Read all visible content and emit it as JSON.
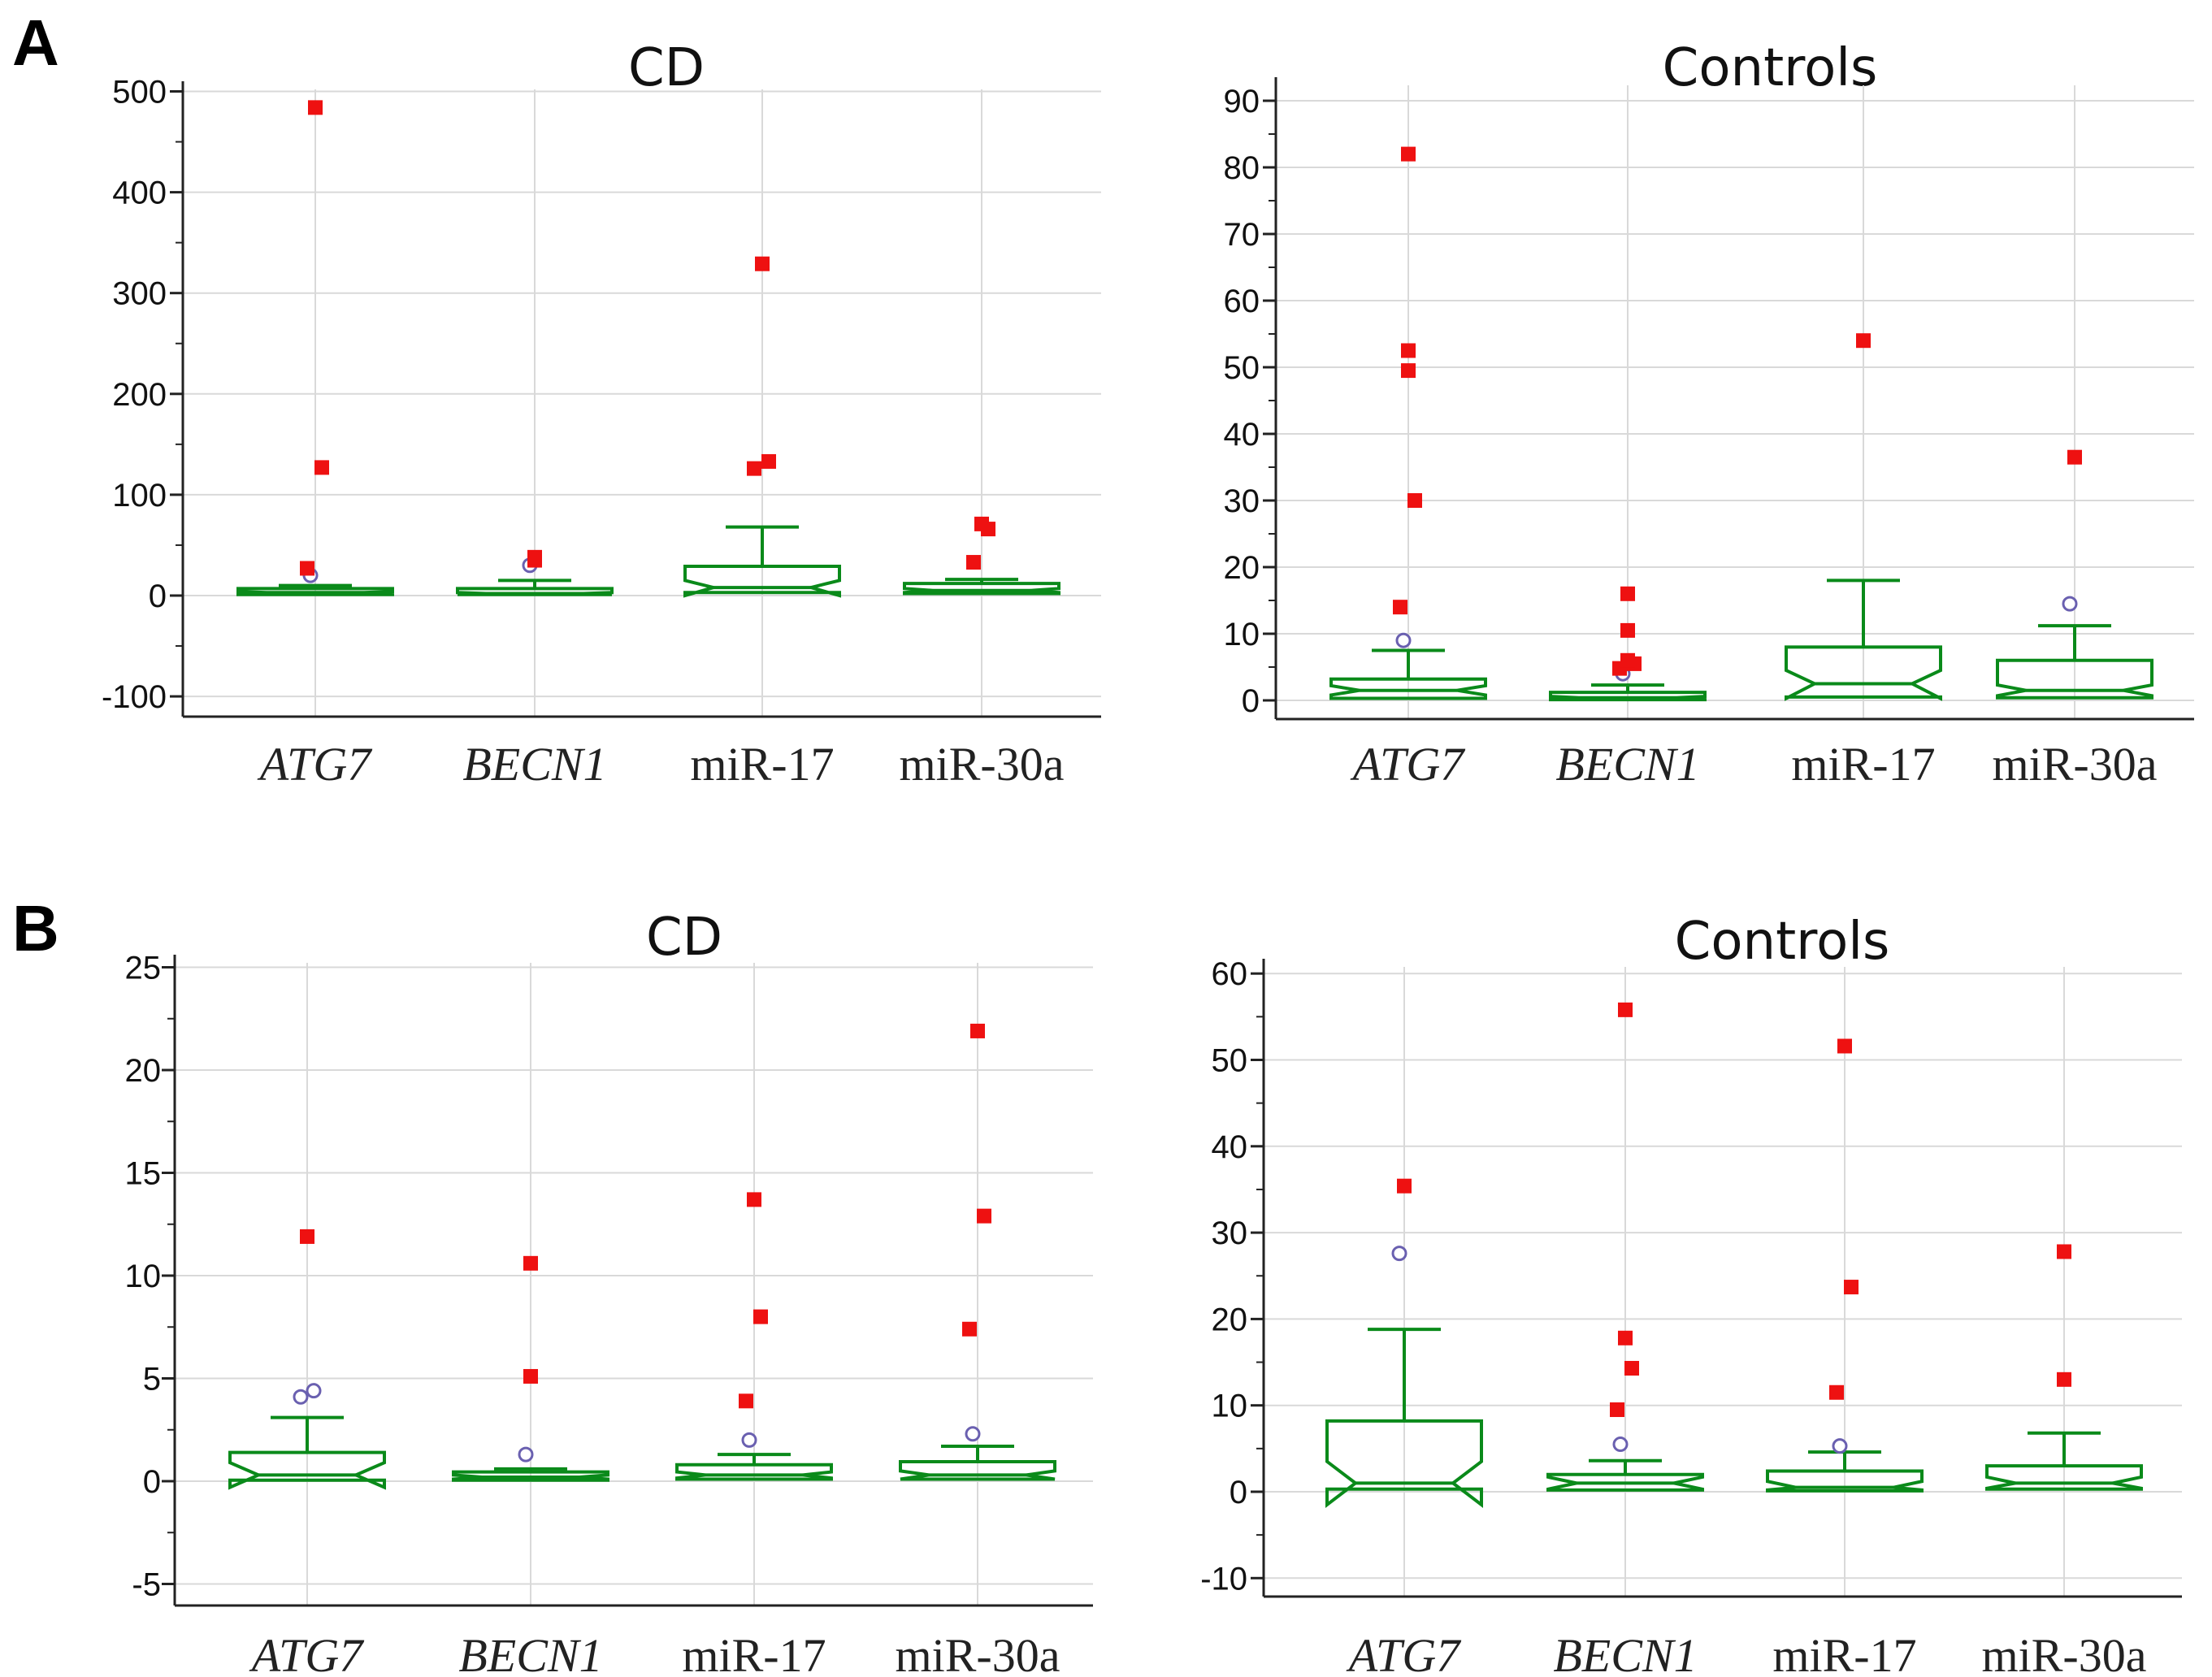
{
  "figure": {
    "colors": {
      "box": "#0a8a1a",
      "outlier_far": "#ee1111",
      "outlier_near": "#6a60b0",
      "grid": "#d9d9d9",
      "axis": "#222222"
    }
  },
  "chart_data": [
    {
      "type": "box",
      "panel": "A",
      "title": "CD",
      "categories": [
        "ATG7",
        "BECN1",
        "miR-17",
        "miR-30a"
      ],
      "italic_categories": [
        "ATG7",
        "BECN1"
      ],
      "ylim": [
        -100,
        500
      ],
      "yticks": [
        -100,
        0,
        100,
        200,
        300,
        400,
        500
      ],
      "boxes": [
        {
          "category": "ATG7",
          "whisker_low": 0,
          "q1": 1,
          "median": 3,
          "q3": 7,
          "whisker_high": 10,
          "notch_low": 2,
          "notch_high": 4,
          "near_outliers": [
            20
          ],
          "far_outliers": [
            27,
            127,
            484
          ]
        },
        {
          "category": "BECN1",
          "whisker_low": 0,
          "q1": 1,
          "median": 2,
          "q3": 7,
          "whisker_high": 15,
          "notch_low": 1,
          "notch_high": 3,
          "near_outliers": [
            30
          ],
          "far_outliers": [
            35,
            38
          ]
        },
        {
          "category": "miR-17",
          "whisker_low": 0,
          "q1": 3,
          "median": 8,
          "q3": 29,
          "whisker_high": 68,
          "notch_low": 0,
          "notch_high": 15,
          "near_outliers": [],
          "far_outliers": [
            126,
            133,
            329
          ]
        },
        {
          "category": "miR-30a",
          "whisker_low": 0,
          "q1": 2,
          "median": 5,
          "q3": 12,
          "whisker_high": 16,
          "notch_low": 3,
          "notch_high": 7,
          "near_outliers": [],
          "far_outliers": [
            33,
            66,
            71
          ]
        }
      ]
    },
    {
      "type": "box",
      "panel": "",
      "title": "Controls",
      "categories": [
        "ATG7",
        "BECN1",
        "miR-17",
        "miR-30a"
      ],
      "italic_categories": [
        "ATG7",
        "BECN1"
      ],
      "ylim": [
        -1,
        92
      ],
      "yticks": [
        0,
        10,
        20,
        30,
        40,
        50,
        60,
        70,
        80,
        90
      ],
      "boxes": [
        {
          "category": "ATG7",
          "whisker_low": 0,
          "q1": 0.3,
          "median": 1.5,
          "q3": 3.2,
          "whisker_high": 7.5,
          "notch_low": 0.8,
          "notch_high": 2.2,
          "near_outliers": [
            9
          ],
          "far_outliers": [
            14,
            30,
            49.5,
            52.5,
            82
          ]
        },
        {
          "category": "BECN1",
          "whisker_low": 0,
          "q1": 0.1,
          "median": 0.4,
          "q3": 1.2,
          "whisker_high": 2.3,
          "notch_low": 0.2,
          "notch_high": 0.6,
          "near_outliers": [
            4
          ],
          "far_outliers": [
            4.8,
            5.5,
            6,
            10.5,
            16
          ]
        },
        {
          "category": "miR-17",
          "whisker_low": 0,
          "q1": 0.5,
          "median": 2.5,
          "q3": 8,
          "whisker_high": 18,
          "notch_low": 0.3,
          "notch_high": 4.5,
          "near_outliers": [],
          "far_outliers": [
            54
          ]
        },
        {
          "category": "miR-30a",
          "whisker_low": 0,
          "q1": 0.4,
          "median": 1.5,
          "q3": 6,
          "whisker_high": 11.2,
          "notch_low": 0.7,
          "notch_high": 2.3,
          "near_outliers": [
            14.5
          ],
          "far_outliers": [
            36.5
          ]
        }
      ]
    },
    {
      "type": "box",
      "panel": "B",
      "title": "CD",
      "categories": [
        "ATG7",
        "BECN1",
        "miR-17",
        "miR-30a"
      ],
      "italic_categories": [
        "ATG7",
        "BECN1"
      ],
      "ylim": [
        -5,
        25
      ],
      "yticks": [
        -5,
        0,
        5,
        10,
        15,
        20,
        25
      ],
      "boxes": [
        {
          "category": "ATG7",
          "whisker_low": 0,
          "q1": 0.05,
          "median": 0.3,
          "q3": 1.4,
          "whisker_high": 3.1,
          "notch_low": -0.3,
          "notch_high": 0.9,
          "near_outliers": [
            4.1,
            4.4
          ],
          "far_outliers": [
            11.9
          ]
        },
        {
          "category": "BECN1",
          "whisker_low": 0,
          "q1": 0.05,
          "median": 0.2,
          "q3": 0.45,
          "whisker_high": 0.6,
          "notch_low": 0.1,
          "notch_high": 0.3,
          "near_outliers": [
            1.3
          ],
          "far_outliers": [
            5.1,
            10.6
          ]
        },
        {
          "category": "miR-17",
          "whisker_low": 0,
          "q1": 0.1,
          "median": 0.3,
          "q3": 0.8,
          "whisker_high": 1.3,
          "notch_low": 0.15,
          "notch_high": 0.45,
          "near_outliers": [
            2
          ],
          "far_outliers": [
            3.9,
            8,
            13.7
          ]
        },
        {
          "category": "miR-30a",
          "whisker_low": 0,
          "q1": 0.1,
          "median": 0.3,
          "q3": 0.95,
          "whisker_high": 1.7,
          "notch_low": 0.1,
          "notch_high": 0.5,
          "near_outliers": [
            2.3
          ],
          "far_outliers": [
            7.4,
            12.9,
            21.9
          ]
        }
      ]
    },
    {
      "type": "box",
      "panel": "",
      "title": "Controls",
      "categories": [
        "ATG7",
        "BECN1",
        "miR-17",
        "miR-30a"
      ],
      "italic_categories": [
        "ATG7",
        "BECN1"
      ],
      "ylim": [
        -12,
        61
      ],
      "yticks": [
        -10,
        0,
        10,
        20,
        30,
        40,
        50,
        60
      ],
      "boxes": [
        {
          "category": "ATG7",
          "whisker_low": 0,
          "q1": 0.3,
          "median": 1,
          "q3": 8.2,
          "whisker_high": 18.8,
          "notch_low": -1.5,
          "notch_high": 3.5,
          "near_outliers": [
            27.6
          ],
          "far_outliers": [
            35.4
          ]
        },
        {
          "category": "BECN1",
          "whisker_low": 0,
          "q1": 0.2,
          "median": 1,
          "q3": 2,
          "whisker_high": 3.6,
          "notch_low": 0.3,
          "notch_high": 1.7,
          "near_outliers": [
            5.5
          ],
          "far_outliers": [
            9.5,
            14.3,
            17.8,
            55.8
          ]
        },
        {
          "category": "miR-17",
          "whisker_low": 0,
          "q1": 0.1,
          "median": 0.5,
          "q3": 2.4,
          "whisker_high": 4.6,
          "notch_low": 0.2,
          "notch_high": 1.2,
          "near_outliers": [
            5.3
          ],
          "far_outliers": [
            11.5,
            23.7,
            51.6
          ]
        },
        {
          "category": "miR-30a",
          "whisker_low": 0,
          "q1": 0.3,
          "median": 1,
          "q3": 3,
          "whisker_high": 6.8,
          "notch_low": 0.4,
          "notch_high": 1.7,
          "near_outliers": [],
          "far_outliers": [
            13,
            27.8
          ]
        }
      ]
    }
  ]
}
